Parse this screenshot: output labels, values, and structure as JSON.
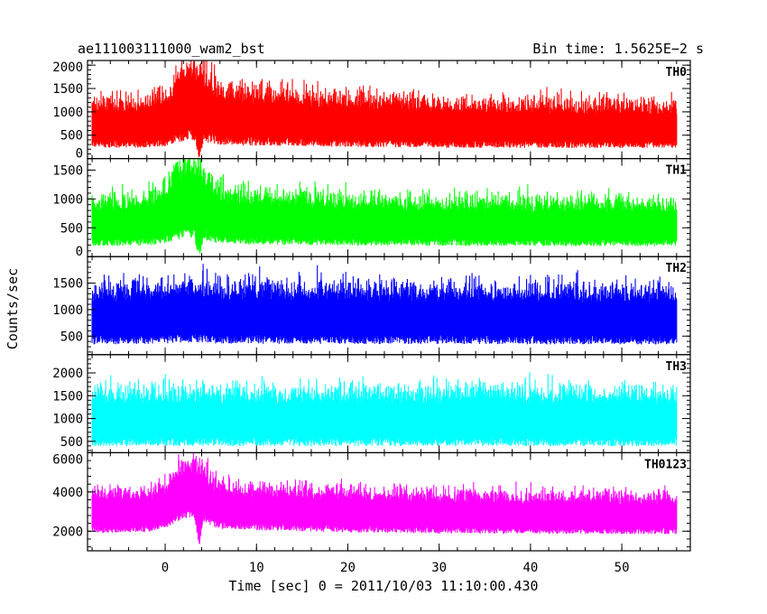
{
  "header": {
    "left": "ae111003111000_wam2_bst",
    "right": "Bin time: 1.5625E−2 s"
  },
  "chart_data": {
    "type": "line",
    "xlabel": "Time [sec] 0 = 2011/10/03 11:10:00.430",
    "ylabel": "Counts/sec",
    "xlim": [
      -8.5,
      57.5
    ],
    "x_ticks": [
      0,
      10,
      20,
      30,
      40,
      50
    ],
    "x_data_range": [
      -8.0,
      56.0
    ],
    "bin_time": 0.015625,
    "panels": [
      {
        "name": "TH0",
        "color": "#ff0000",
        "ylim": [
          0,
          2100
        ],
        "y_ticks": [
          0,
          500,
          1000,
          1500,
          2000
        ],
        "profile": [
          [
            -8,
            730
          ],
          [
            -2,
            740
          ],
          [
            0,
            820
          ],
          [
            1,
            1000
          ],
          [
            2,
            1150
          ],
          [
            3,
            1250
          ],
          [
            4,
            1180
          ],
          [
            5,
            1020
          ],
          [
            6,
            920
          ],
          [
            8,
            880
          ],
          [
            12,
            860
          ],
          [
            20,
            780
          ],
          [
            30,
            730
          ],
          [
            40,
            710
          ],
          [
            56,
            700
          ]
        ],
        "spread": 0.62,
        "dips": [
          [
            3.7,
            0.5,
            430
          ]
        ]
      },
      {
        "name": "TH1",
        "color": "#00ff00",
        "ylim": [
          0,
          1700
        ],
        "y_ticks": [
          0,
          500,
          1000,
          1500
        ],
        "profile": [
          [
            -8,
            580
          ],
          [
            -2,
            600
          ],
          [
            0,
            700
          ],
          [
            1,
            880
          ],
          [
            2,
            1000
          ],
          [
            3,
            1030
          ],
          [
            4,
            960
          ],
          [
            5,
            800
          ],
          [
            6,
            700
          ],
          [
            10,
            650
          ],
          [
            20,
            600
          ],
          [
            56,
            560
          ]
        ],
        "spread": 0.62,
        "dips": [
          [
            3.7,
            0.5,
            350
          ]
        ]
      },
      {
        "name": "TH2",
        "color": "#0000ff",
        "ylim": [
          150,
          2000
        ],
        "y_ticks": [
          500,
          1000,
          1500
        ],
        "profile": [
          [
            -8,
            870
          ],
          [
            0,
            900
          ],
          [
            3,
            960
          ],
          [
            6,
            900
          ],
          [
            56,
            860
          ]
        ],
        "spread": 0.55,
        "dips": []
      },
      {
        "name": "TH3",
        "color": "#00ffff",
        "ylim": [
          250,
          2400
        ],
        "y_ticks": [
          500,
          1000,
          1500,
          2000
        ],
        "profile": [
          [
            -8,
            1000
          ],
          [
            56,
            1000
          ]
        ],
        "spread": 0.55,
        "dips": []
      },
      {
        "name": "TH0123",
        "color": "#ff00ff",
        "ylim": [
          1000,
          6000
        ],
        "y_ticks": [
          2000,
          4000,
          6000
        ],
        "profile": [
          [
            -8,
            2950
          ],
          [
            -2,
            3000
          ],
          [
            0,
            3300
          ],
          [
            1,
            3700
          ],
          [
            2,
            4050
          ],
          [
            3,
            4200
          ],
          [
            4,
            4000
          ],
          [
            5,
            3500
          ],
          [
            6,
            3250
          ],
          [
            10,
            3150
          ],
          [
            20,
            3000
          ],
          [
            30,
            2900
          ],
          [
            56,
            2850
          ]
        ],
        "spread": 0.32,
        "dips": [
          [
            3.7,
            0.5,
            1500
          ]
        ]
      }
    ]
  }
}
